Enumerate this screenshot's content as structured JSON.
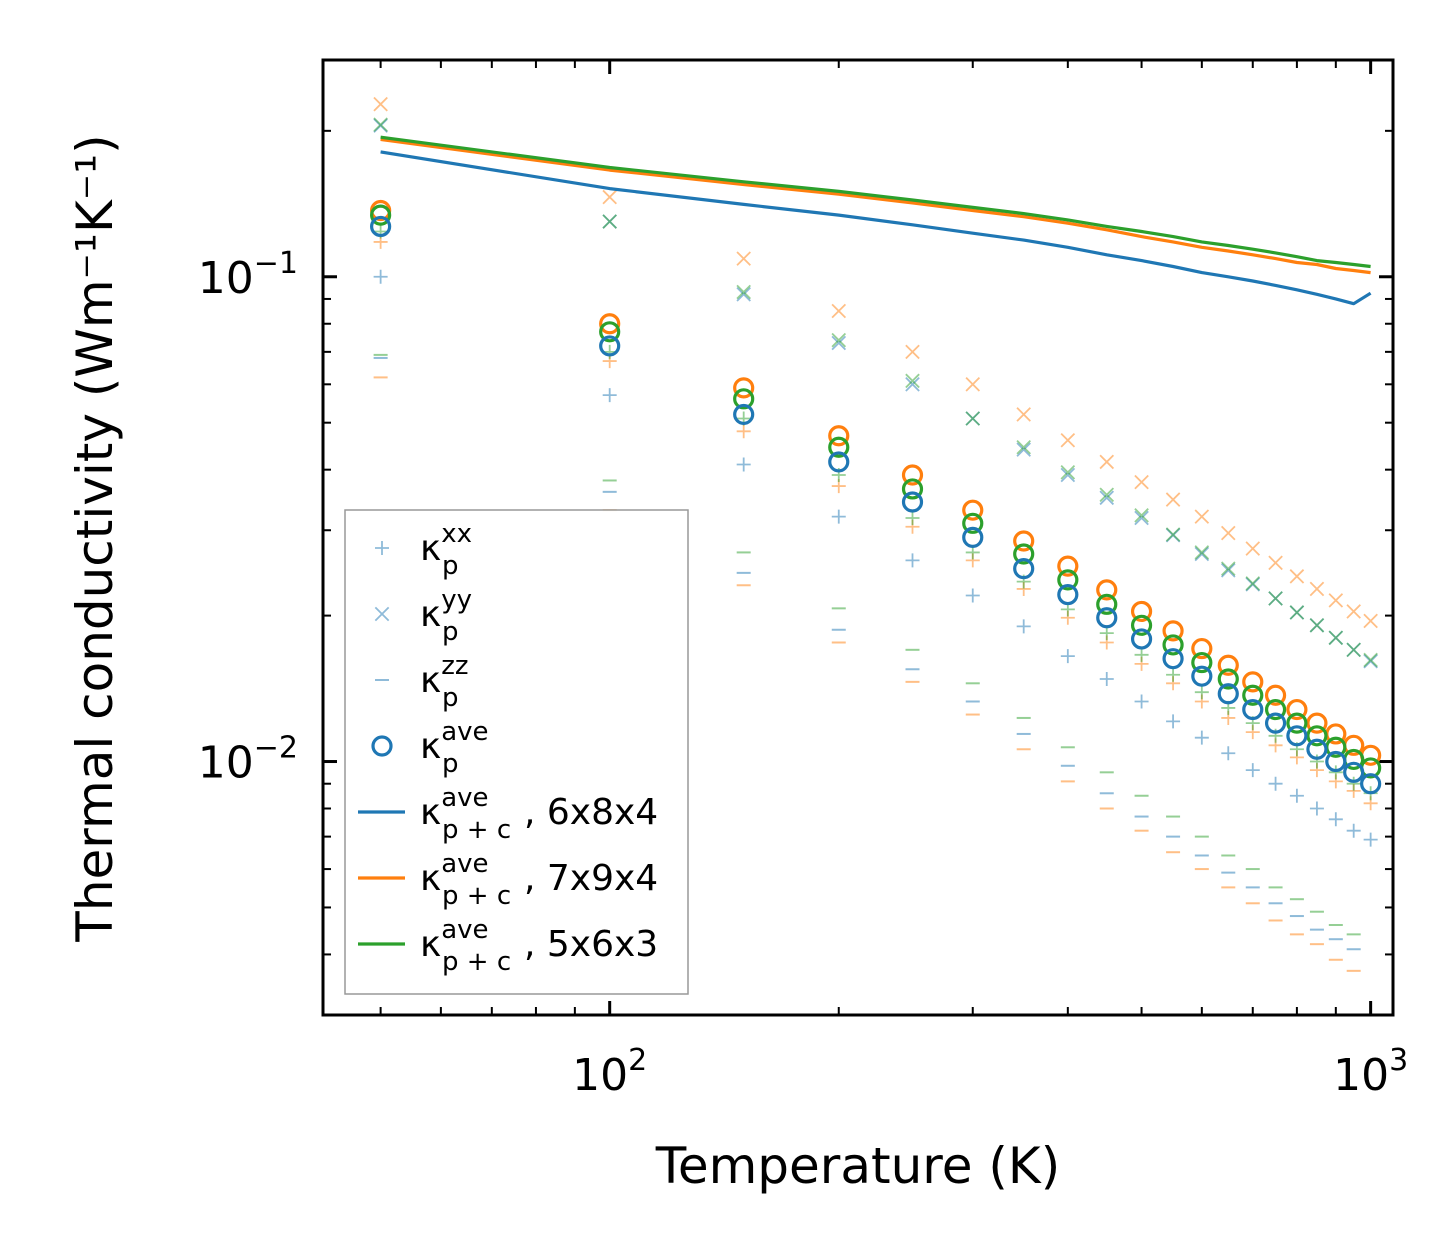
{
  "chart_data": {
    "type": "scatter",
    "xscale": "log",
    "yscale": "log",
    "xlabel": "Temperature (K)",
    "ylabel": "Thermal conductivity (Wm⁻¹K⁻¹)",
    "xlim": [
      42,
      1070
    ],
    "ylim": [
      0.003,
      0.28
    ],
    "xticks": [
      {
        "value": 100,
        "base": "10",
        "exp": "2"
      },
      {
        "value": 1000,
        "base": "10",
        "exp": "3"
      }
    ],
    "yticks": [
      {
        "value": 0.01,
        "base": "10",
        "exp": "−2"
      },
      {
        "value": 0.1,
        "base": "10",
        "exp": "−1"
      }
    ],
    "colors": {
      "blue": "#1f77b4",
      "orange": "#ff7f0e",
      "green": "#2ca02c"
    },
    "sc_x": [
      50,
      100,
      150,
      200,
      250,
      300,
      350,
      400,
      450,
      500,
      550,
      600,
      650,
      700,
      750,
      800,
      850,
      900,
      950,
      1000
    ],
    "sc_x_zz": [
      50,
      100,
      150,
      200,
      250,
      300,
      350,
      400,
      450,
      500,
      550,
      600,
      650,
      700,
      750,
      800,
      850,
      900,
      950
    ],
    "line_x": [
      50,
      100,
      150,
      200,
      250,
      300,
      350,
      400,
      450,
      500,
      550,
      600,
      650,
      700,
      750,
      800,
      850,
      900,
      950,
      1000
    ],
    "series": [
      {
        "name": "kxx_6x8x4",
        "marker": "plus",
        "color": "#1f77b4",
        "alpha": 0.5,
        "xkey": "sc_x",
        "values": [
          0.1,
          0.057,
          0.041,
          0.032,
          0.026,
          0.022,
          0.019,
          0.0165,
          0.0148,
          0.0133,
          0.0121,
          0.0112,
          0.0104,
          0.0096,
          0.009,
          0.0085,
          0.008,
          0.0076,
          0.0072,
          0.0069
        ]
      },
      {
        "name": "kxx_7x9x4",
        "marker": "plus",
        "color": "#ff7f0e",
        "alpha": 0.5,
        "xkey": "sc_x",
        "values": [
          0.118,
          0.067,
          0.048,
          0.037,
          0.0305,
          0.026,
          0.0227,
          0.0198,
          0.0176,
          0.0159,
          0.0145,
          0.0133,
          0.0123,
          0.0115,
          0.0108,
          0.0102,
          0.0096,
          0.0091,
          0.0087,
          0.0082
        ]
      },
      {
        "name": "kxx_5x6x3",
        "marker": "plus",
        "color": "#2ca02c",
        "alpha": 0.5,
        "xkey": "sc_x",
        "values": [
          0.124,
          0.07,
          0.051,
          0.039,
          0.0318,
          0.027,
          0.0235,
          0.0206,
          0.0184,
          0.0166,
          0.0151,
          0.0139,
          0.0129,
          0.012,
          0.0113,
          0.0106,
          0.01,
          0.0095,
          0.009,
          0.0086
        ]
      },
      {
        "name": "kyy_6x8x4",
        "marker": "x",
        "color": "#1f77b4",
        "alpha": 0.5,
        "xkey": "sc_x",
        "values": [
          0.205,
          0.13,
          0.092,
          0.073,
          0.06,
          0.051,
          0.044,
          0.039,
          0.035,
          0.0318,
          0.0293,
          0.0268,
          0.0248,
          0.0232,
          0.0217,
          0.0203,
          0.0191,
          0.018,
          0.017,
          0.0161
        ]
      },
      {
        "name": "kyy_7x9x4",
        "marker": "x",
        "color": "#ff7f0e",
        "alpha": 0.5,
        "xkey": "sc_x",
        "values": [
          0.227,
          0.146,
          0.109,
          0.085,
          0.07,
          0.06,
          0.052,
          0.046,
          0.0415,
          0.0377,
          0.0347,
          0.032,
          0.0296,
          0.0275,
          0.0257,
          0.0241,
          0.0227,
          0.0215,
          0.0204,
          0.0195
        ]
      },
      {
        "name": "kyy_5x6x3",
        "marker": "x",
        "color": "#2ca02c",
        "alpha": 0.5,
        "xkey": "sc_x",
        "values": [
          0.206,
          0.13,
          0.093,
          0.074,
          0.061,
          0.051,
          0.0445,
          0.0395,
          0.0355,
          0.0322,
          0.0294,
          0.027,
          0.025,
          0.0233,
          0.0217,
          0.0203,
          0.0191,
          0.018,
          0.017,
          0.0162
        ]
      },
      {
        "name": "kzz_6x8x4",
        "marker": "dash",
        "color": "#1f77b4",
        "alpha": 0.5,
        "xkey": "sc_x_zz",
        "values": [
          0.068,
          0.036,
          0.0245,
          0.0187,
          0.0155,
          0.0133,
          0.0114,
          0.0098,
          0.0086,
          0.0077,
          0.007,
          0.0064,
          0.0059,
          0.0055,
          0.0051,
          0.0048,
          0.0045,
          0.0043,
          0.0041
        ]
      },
      {
        "name": "kzz_7x9x4",
        "marker": "dash",
        "color": "#ff7f0e",
        "alpha": 0.5,
        "xkey": "sc_x_zz",
        "values": [
          0.062,
          0.033,
          0.0231,
          0.0176,
          0.0146,
          0.0125,
          0.0106,
          0.0091,
          0.008,
          0.0072,
          0.0065,
          0.006,
          0.0055,
          0.0051,
          0.0047,
          0.0044,
          0.0042,
          0.0039,
          0.0037
        ]
      },
      {
        "name": "kzz_5x6x3",
        "marker": "dash",
        "color": "#2ca02c",
        "alpha": 0.5,
        "xkey": "sc_x_zz",
        "values": [
          0.069,
          0.038,
          0.027,
          0.0207,
          0.017,
          0.0145,
          0.0123,
          0.0107,
          0.0095,
          0.0085,
          0.0077,
          0.007,
          0.0064,
          0.006,
          0.0055,
          0.0052,
          0.0049,
          0.0046,
          0.0044
        ]
      },
      {
        "name": "kave_7x9x4",
        "marker": "circle",
        "color": "#ff7f0e",
        "alpha": 1,
        "xkey": "sc_x",
        "values": [
          0.137,
          0.08,
          0.059,
          0.047,
          0.039,
          0.033,
          0.0285,
          0.0253,
          0.0226,
          0.0204,
          0.0186,
          0.0171,
          0.0158,
          0.0146,
          0.0137,
          0.0128,
          0.012,
          0.0114,
          0.0108,
          0.0103
        ]
      },
      {
        "name": "kave_5x6x3",
        "marker": "circle",
        "color": "#2ca02c",
        "alpha": 1,
        "xkey": "sc_x",
        "values": [
          0.134,
          0.077,
          0.056,
          0.0445,
          0.0365,
          0.031,
          0.0268,
          0.0237,
          0.0211,
          0.0191,
          0.0174,
          0.016,
          0.0148,
          0.0137,
          0.0128,
          0.012,
          0.0113,
          0.0107,
          0.0101,
          0.0097
        ]
      },
      {
        "name": "kave_6x8x4",
        "marker": "circle",
        "color": "#1f77b4",
        "alpha": 1,
        "xkey": "sc_x",
        "values": [
          0.127,
          0.072,
          0.052,
          0.0415,
          0.0343,
          0.029,
          0.025,
          0.0221,
          0.0198,
          0.0179,
          0.0163,
          0.015,
          0.0138,
          0.0128,
          0.012,
          0.0113,
          0.0106,
          0.01,
          0.0095,
          0.009
        ]
      },
      {
        "name": "kpc_6x8x4",
        "marker": "line",
        "color": "#1f77b4",
        "alpha": 1,
        "xkey": "line_x",
        "values": [
          0.181,
          0.152,
          0.141,
          0.134,
          0.128,
          0.123,
          0.119,
          0.115,
          0.111,
          0.108,
          0.105,
          0.102,
          0.1,
          0.098,
          0.096,
          0.094,
          0.092,
          0.09,
          0.088,
          0.0925
        ]
      },
      {
        "name": "kpc_7x9x4",
        "marker": "line",
        "color": "#ff7f0e",
        "alpha": 1,
        "xkey": "line_x",
        "values": [
          0.192,
          0.166,
          0.155,
          0.148,
          0.142,
          0.137,
          0.133,
          0.129,
          0.125,
          0.121,
          0.118,
          0.115,
          0.113,
          0.111,
          0.109,
          0.107,
          0.106,
          0.104,
          0.103,
          0.102
        ]
      },
      {
        "name": "kpc_5x6x3",
        "marker": "line",
        "color": "#2ca02c",
        "alpha": 1,
        "xkey": "line_x",
        "values": [
          0.194,
          0.168,
          0.157,
          0.15,
          0.144,
          0.139,
          0.135,
          0.131,
          0.127,
          0.124,
          0.121,
          0.118,
          0.116,
          0.114,
          0.112,
          0.11,
          0.108,
          0.107,
          0.106,
          0.105
        ]
      }
    ],
    "legend": {
      "location": "lower-left",
      "entries": [
        {
          "marker": "plus",
          "color": "#1f77b4",
          "alpha": 0.5,
          "base": "κ",
          "sub": "p",
          "sup": "xx",
          "suffix": ""
        },
        {
          "marker": "x",
          "color": "#1f77b4",
          "alpha": 0.5,
          "base": "κ",
          "sub": "p",
          "sup": "yy",
          "suffix": ""
        },
        {
          "marker": "dash",
          "color": "#1f77b4",
          "alpha": 0.5,
          "base": "κ",
          "sub": "p",
          "sup": "zz",
          "suffix": ""
        },
        {
          "marker": "circle",
          "color": "#1f77b4",
          "alpha": 1,
          "base": "κ",
          "sub": "p",
          "sup": "ave",
          "suffix": ""
        },
        {
          "marker": "line",
          "color": "#1f77b4",
          "alpha": 1,
          "base": "κ",
          "sub": "p + c",
          "sup": "ave",
          "suffix": ", 6x8x4"
        },
        {
          "marker": "line",
          "color": "#ff7f0e",
          "alpha": 1,
          "base": "κ",
          "sub": "p + c",
          "sup": "ave",
          "suffix": ", 7x9x4"
        },
        {
          "marker": "line",
          "color": "#2ca02c",
          "alpha": 1,
          "base": "κ",
          "sub": "p + c",
          "sup": "ave",
          "suffix": ", 5x6x3"
        }
      ]
    }
  }
}
